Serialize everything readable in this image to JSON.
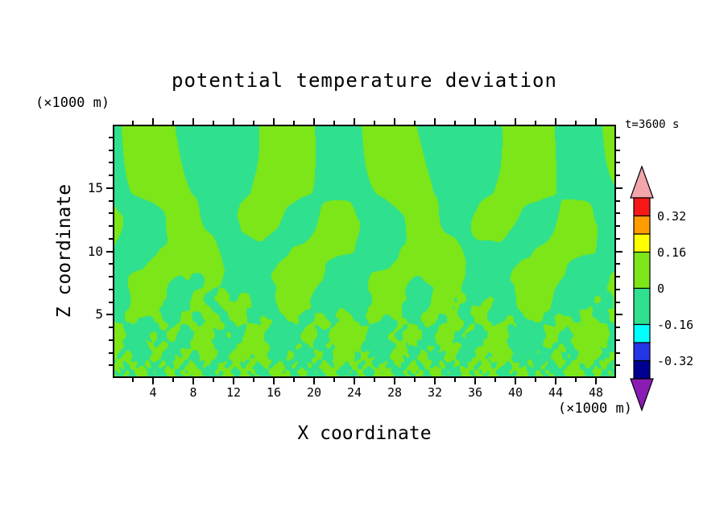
{
  "chart_data": {
    "type": "filled-contour",
    "title": "potential temperature deviation",
    "time_label": "t=3600 s",
    "xlabel": "X coordinate",
    "ylabel": "Z coordinate",
    "x_units_label": "(×1000 m)",
    "z_units_label": "(×1000 m)",
    "xlim": [
      0,
      50
    ],
    "zlim": [
      0,
      20
    ],
    "x_major_ticks": [
      4,
      8,
      12,
      16,
      20,
      24,
      28,
      32,
      36,
      40,
      44,
      48
    ],
    "x_minor_step": 2,
    "z_major_ticks": [
      5,
      10,
      15
    ],
    "z_minor_step": 1,
    "grid": false,
    "legend_position": "right-colorbar",
    "fill_colors": {
      "positive": "#7ce619",
      "negative": "#2fe08f"
    },
    "colorbar": {
      "labels": [
        "0.32",
        "0.16",
        "0",
        "-0.16",
        "-0.32"
      ],
      "arrow_top_color": "#f2a6ac",
      "arrow_bottom_color": "#8a1cb4",
      "cells": [
        {
          "color": "#f81717",
          "h": 1
        },
        {
          "color": "#ff9c00",
          "h": 1
        },
        {
          "color": "#ffff00",
          "h": 1
        },
        {
          "color": "#7ce619",
          "h": 2
        },
        {
          "color": "#2fe08f",
          "h": 2
        },
        {
          "color": "#00ffff",
          "h": 1
        },
        {
          "color": "#2336e8",
          "h": 1
        },
        {
          "color": "#000090",
          "h": 1
        }
      ],
      "label_after_cell": [
        0,
        2,
        3,
        4,
        6
      ]
    },
    "field_model": {
      "note": "two-tone filled contour field: deviations between 0 and +0.16 render positive color, between -0.16 and 0 render negative color",
      "threshold": 0,
      "damping_layer_z": 14.6,
      "damping_stretch": 0.3,
      "components": [
        {
          "amp": 1.0,
          "kx": 0.52,
          "kz": 0.4,
          "px": 0.8,
          "pz": 1.1,
          "warp": 1.7,
          "wk": 0.33,
          "decay": 0,
          "onset": 5
        },
        {
          "amp": 0.85,
          "kx": 0.8,
          "kz": 0.62,
          "px": 2.4,
          "pz": 0.3,
          "warp": 0,
          "wk": 0,
          "decay": 0,
          "onset": 3
        },
        {
          "amp": 0.9,
          "kx": 1.3,
          "kz": 0.95,
          "px": 4.4,
          "pz": 2.0,
          "warp": 1.1,
          "wk": 0.7,
          "decay": 9,
          "onset": 0
        },
        {
          "amp": 0.95,
          "kx": 2.35,
          "kz": 2.1,
          "px": 0.5,
          "pz": 0.9,
          "warp": 0.9,
          "wk": 1.3,
          "decay": 4.5,
          "onset": 0
        },
        {
          "amp": 1.0,
          "kx": 4.3,
          "kz": 4.2,
          "px": 1.7,
          "pz": 0.2,
          "warp": 0.8,
          "wk": 2.2,
          "decay": 2.4,
          "onset": 0
        },
        {
          "amp": 0.95,
          "kx": 7.1,
          "kz": 7.6,
          "px": 0.1,
          "pz": 1.3,
          "warp": 0,
          "wk": 0,
          "decay": 1.4,
          "onset": 0
        }
      ]
    }
  }
}
